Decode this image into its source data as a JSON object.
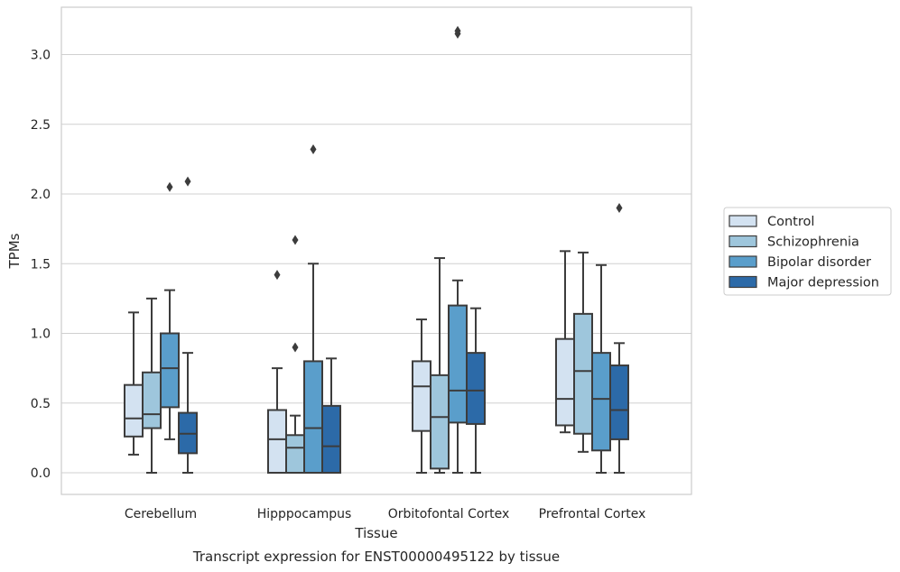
{
  "chart_data": {
    "type": "box",
    "caption": "Transcript expression for ENST00000495122 by tissue",
    "xlabel": "Tissue",
    "ylabel": "TPMs",
    "ylim": [
      -0.15,
      3.35
    ],
    "yticks": [
      0.0,
      0.5,
      1.0,
      1.5,
      2.0,
      2.5,
      3.0
    ],
    "ytick_labels": [
      "0.0",
      "0.5",
      "1.0",
      "1.5",
      "2.0",
      "2.5",
      "3.0"
    ],
    "grid": "horizontal",
    "legend_position": "right",
    "categories": [
      "Cerebellum",
      "Hipppocampus",
      "Orbitofontal Cortex",
      "Prefrontal Cortex"
    ],
    "series": [
      {
        "name": "Control",
        "color": "#d3e2f1",
        "boxes": [
          {
            "whislo": 0.13,
            "q1": 0.26,
            "med": 0.39,
            "q3": 0.63,
            "whishi": 1.15,
            "fliers": []
          },
          {
            "whislo": 0.0,
            "q1": 0.0,
            "med": 0.24,
            "q3": 0.45,
            "whishi": 0.75,
            "fliers": [
              1.42
            ]
          },
          {
            "whislo": 0.0,
            "q1": 0.3,
            "med": 0.62,
            "q3": 0.8,
            "whishi": 1.1,
            "fliers": []
          },
          {
            "whislo": 0.29,
            "q1": 0.34,
            "med": 0.53,
            "q3": 0.96,
            "whishi": 1.59,
            "fliers": []
          }
        ]
      },
      {
        "name": "Schizophrenia",
        "color": "#9ec6dc",
        "boxes": [
          {
            "whislo": 0.0,
            "q1": 0.32,
            "med": 0.42,
            "q3": 0.72,
            "whishi": 1.25,
            "fliers": []
          },
          {
            "whislo": 0.0,
            "q1": 0.0,
            "med": 0.18,
            "q3": 0.27,
            "whishi": 0.41,
            "fliers": [
              0.9,
              1.67
            ]
          },
          {
            "whislo": 0.0,
            "q1": 0.03,
            "med": 0.4,
            "q3": 0.7,
            "whishi": 1.54,
            "fliers": []
          },
          {
            "whislo": 0.15,
            "q1": 0.28,
            "med": 0.73,
            "q3": 1.14,
            "whishi": 1.58,
            "fliers": []
          }
        ]
      },
      {
        "name": "Bipolar disorder",
        "color": "#5a9ecb",
        "boxes": [
          {
            "whislo": 0.24,
            "q1": 0.47,
            "med": 0.75,
            "q3": 1.0,
            "whishi": 1.31,
            "fliers": [
              2.05
            ]
          },
          {
            "whislo": 0.0,
            "q1": 0.0,
            "med": 0.32,
            "q3": 0.8,
            "whishi": 1.5,
            "fliers": [
              2.32
            ]
          },
          {
            "whislo": 0.0,
            "q1": 0.36,
            "med": 0.59,
            "q3": 1.2,
            "whishi": 1.38,
            "fliers": [
              3.15,
              3.17
            ]
          },
          {
            "whislo": 0.0,
            "q1": 0.16,
            "med": 0.53,
            "q3": 0.86,
            "whishi": 1.49,
            "fliers": []
          }
        ]
      },
      {
        "name": "Major depression",
        "color": "#2c6aa8",
        "boxes": [
          {
            "whislo": 0.0,
            "q1": 0.14,
            "med": 0.28,
            "q3": 0.43,
            "whishi": 0.86,
            "fliers": [
              2.09
            ]
          },
          {
            "whislo": 0.0,
            "q1": 0.0,
            "med": 0.19,
            "q3": 0.48,
            "whishi": 0.82,
            "fliers": []
          },
          {
            "whislo": 0.0,
            "q1": 0.35,
            "med": 0.59,
            "q3": 0.86,
            "whishi": 1.18,
            "fliers": []
          },
          {
            "whislo": 0.0,
            "q1": 0.24,
            "med": 0.45,
            "q3": 0.77,
            "whishi": 0.93,
            "fliers": [
              1.9
            ]
          }
        ]
      }
    ]
  }
}
